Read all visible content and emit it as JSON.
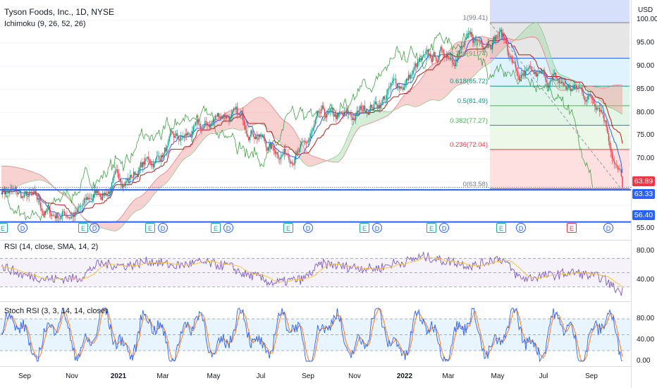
{
  "header": {
    "symbol_line": "Tyson Foods, Inc., 1D, NYSE",
    "indicator_line": "Ichimoku (9, 26, 52, 26)",
    "currency": "USD"
  },
  "price_tags": {
    "last": "63.89",
    "level_upper": "63.33",
    "level_lower": "56.40",
    "last_color": "#f23645",
    "level_color": "#2962ff"
  },
  "panes": {
    "rsi_label": "RSI (14, close, SMA, 14, 2)",
    "stoch_label": "Stoch RSI (3, 3, 14, 14, close)"
  },
  "price_axis_labels": [
    "100.00",
    "95.00",
    "90.00",
    "85.00",
    "80.00",
    "75.00",
    "70.00",
    "65.00",
    "55.00"
  ],
  "rsi_axis_labels": [
    "80.00",
    "40.00"
  ],
  "stoch_axis_labels": [
    "80.00",
    "40.00",
    "0.00"
  ],
  "time_axis_labels": [
    "Sep",
    "Nov",
    "2021",
    "Mar",
    "May",
    "Jul",
    "Sep",
    "Nov",
    "2022",
    "Mar",
    "May",
    "Jul",
    "Sep"
  ],
  "event_markers": [
    "E",
    "D",
    "E",
    "D",
    "E",
    "D",
    "E",
    "D",
    "E",
    "D",
    "E",
    "D",
    "E",
    "D",
    "E",
    "D",
    "E",
    "D"
  ],
  "fib_labels": [
    "1(99.41)",
    "0.786(91.74)",
    "0.618(85.72)",
    "0.5(81.49)",
    "0.382(77.27)",
    "0.236(72.04)",
    "0(63.58)"
  ],
  "colors": {
    "candle_up": "#089981",
    "candle_down": "#f23645",
    "kijun": "#b71c1c",
    "tenkan": "#2962ff",
    "chikou": "#43a047",
    "cloud_bull": "#a5d6a7",
    "cloud_bear": "#ef9a9a",
    "rsi_line": "#7e57c2",
    "rsi_ma": "#fbc02d",
    "stoch_k": "#2962ff",
    "stoch_d": "#ff6d00"
  },
  "chart_data": {
    "type": "line",
    "x_months": [
      "Aug 2020",
      "Sep 2020",
      "Oct 2020",
      "Nov 2020",
      "Dec 2020",
      "Jan 2021",
      "Feb 2021",
      "Mar 2021",
      "Apr 2021",
      "May 2021",
      "Jun 2021",
      "Jul 2021",
      "Aug 2021",
      "Sep 2021",
      "Oct 2021",
      "Nov 2021",
      "Dec 2021",
      "Jan 2022",
      "Feb 2022",
      "Mar 2022",
      "Apr 2022",
      "May 2022",
      "Jun 2022",
      "Jul 2022",
      "Aug 2022",
      "Sep 2022"
    ],
    "series": [
      {
        "values": [
          63.5,
          61.5,
          58.0,
          58.5,
          63.0,
          66.0,
          69.5,
          73.5,
          76.0,
          80.0,
          77.0,
          72.0,
          71.5,
          78.5,
          78.5,
          82.0,
          86.0,
          90.5,
          93.0,
          95.0,
          97.5,
          87.0,
          87.0,
          85.0,
          83.0,
          66.0
        ]
      }
    ],
    "rsi": [
      58,
      46,
      41,
      42,
      62,
      60,
      66,
      60,
      64,
      60,
      46,
      36,
      40,
      62,
      58,
      56,
      64,
      72,
      66,
      60,
      70,
      42,
      46,
      50,
      44,
      24
    ],
    "fibonacci": {
      "high": 99.41,
      "low": 63.58,
      "levels": [
        {
          "ratio": 1,
          "price": 99.41
        },
        {
          "ratio": 0.786,
          "price": 91.74
        },
        {
          "ratio": 0.618,
          "price": 85.72
        },
        {
          "ratio": 0.5,
          "price": 81.49
        },
        {
          "ratio": 0.382,
          "price": 77.27
        },
        {
          "ratio": 0.236,
          "price": 72.04
        },
        {
          "ratio": 0,
          "price": 63.58
        }
      ]
    },
    "horizontal_levels": [
      63.33,
      56.4
    ],
    "last_price": 63.89,
    "ylim": [
      53,
      104
    ],
    "rsi_ylim": [
      10,
      95
    ],
    "stoch_ylim": [
      -8,
      112
    ],
    "grid": true
  }
}
